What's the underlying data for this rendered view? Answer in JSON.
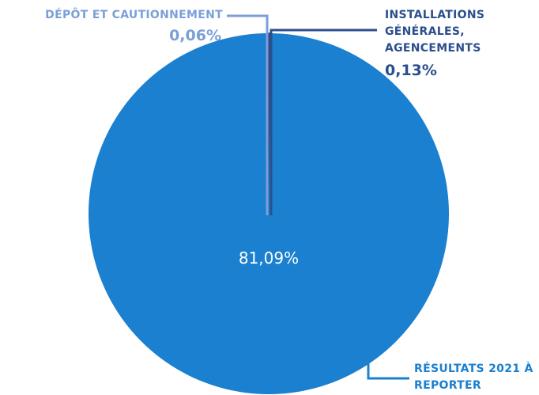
{
  "chart_data": {
    "type": "pie",
    "categories": [
      "DÉPÔT ET CAUTIONNEMENT",
      "INSTALLATIONS GÉNÉRALES, AGENCEMENTS",
      "RÉSULTATS 2021 À REPORTER"
    ],
    "values": [
      0.06,
      0.13,
      81.09
    ],
    "value_labels": [
      "0,06%",
      "0,13%",
      "81,09%"
    ],
    "colors": [
      "#7b9fd8",
      "#2b4f8c",
      "#1a80cf"
    ]
  }
}
